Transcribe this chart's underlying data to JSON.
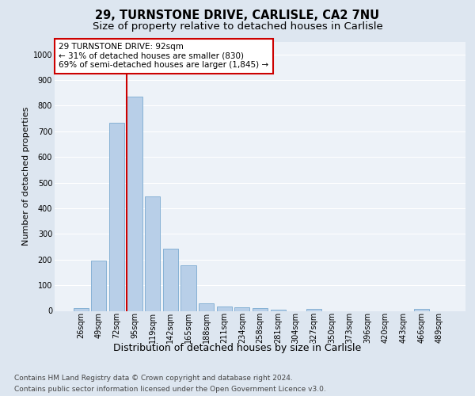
{
  "title1": "29, TURNSTONE DRIVE, CARLISLE, CA2 7NU",
  "title2": "Size of property relative to detached houses in Carlisle",
  "xlabel": "Distribution of detached houses by size in Carlisle",
  "ylabel": "Number of detached properties",
  "categories": [
    "26sqm",
    "49sqm",
    "72sqm",
    "95sqm",
    "119sqm",
    "142sqm",
    "165sqm",
    "188sqm",
    "211sqm",
    "234sqm",
    "258sqm",
    "281sqm",
    "304sqm",
    "327sqm",
    "350sqm",
    "373sqm",
    "396sqm",
    "420sqm",
    "443sqm",
    "466sqm",
    "489sqm"
  ],
  "values": [
    12,
    195,
    735,
    835,
    447,
    242,
    178,
    30,
    18,
    15,
    12,
    5,
    0,
    7,
    0,
    0,
    0,
    0,
    0,
    7,
    0
  ],
  "bar_color": "#b8cfe8",
  "bar_edge_color": "#7aaad0",
  "highlight_line_color": "#cc0000",
  "highlight_line_index": 3,
  "annotation_text": "29 TURNSTONE DRIVE: 92sqm\n← 31% of detached houses are smaller (830)\n69% of semi-detached houses are larger (1,845) →",
  "annotation_box_facecolor": "#ffffff",
  "annotation_box_edgecolor": "#cc0000",
  "ylim": [
    0,
    1050
  ],
  "yticks": [
    0,
    100,
    200,
    300,
    400,
    500,
    600,
    700,
    800,
    900,
    1000
  ],
  "footer1": "Contains HM Land Registry data © Crown copyright and database right 2024.",
  "footer2": "Contains public sector information licensed under the Open Government Licence v3.0.",
  "bg_color": "#dde6f0",
  "plot_bg_color": "#edf2f8",
  "grid_color": "#ffffff",
  "title1_fontsize": 10.5,
  "title2_fontsize": 9.5,
  "xlabel_fontsize": 9,
  "ylabel_fontsize": 8,
  "tick_fontsize": 7,
  "annotation_fontsize": 7.5,
  "footer_fontsize": 6.5
}
